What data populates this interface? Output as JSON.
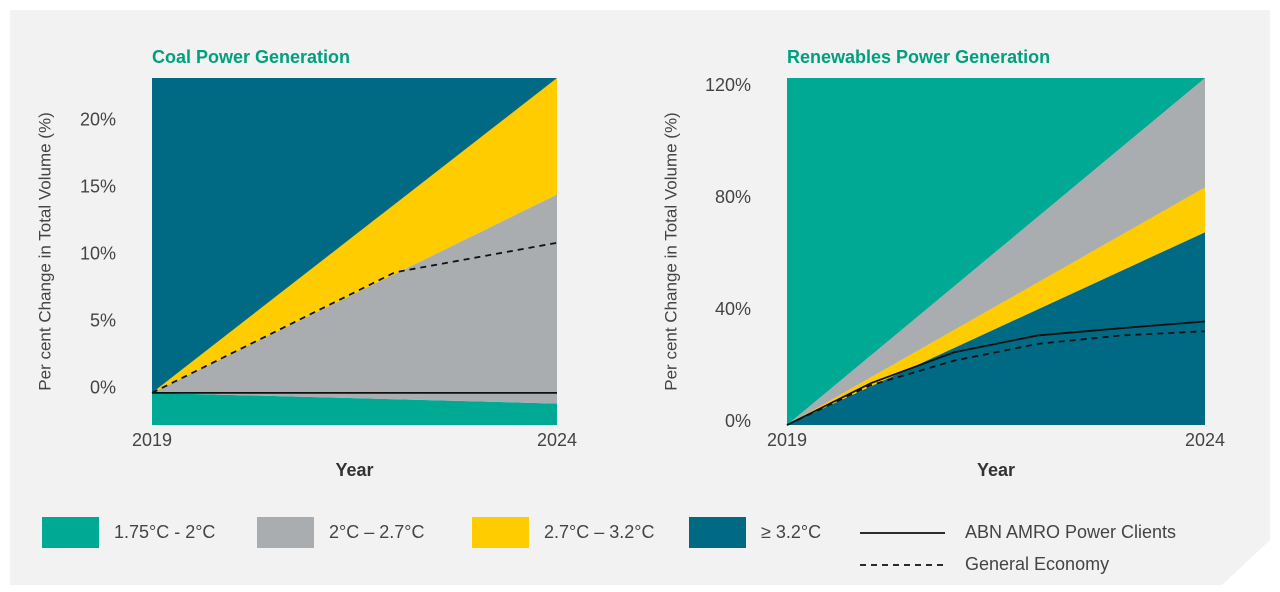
{
  "chart_data": [
    {
      "type": "band",
      "title": "Coal Power Generation",
      "x_label": "Year",
      "y_label": "Per cent Change in Total Volume (%)",
      "x": [
        2019,
        2024
      ],
      "xlim": [
        2019,
        2024
      ],
      "xticks": [
        2019,
        2024
      ],
      "ylim": [
        -2.7,
        23.2
      ],
      "yticks": [
        {
          "value": 0,
          "label": "0%"
        },
        {
          "value": 5,
          "label": "5%"
        },
        {
          "value": 10,
          "label": "10%"
        },
        {
          "value": 15,
          "label": "15%"
        },
        {
          "value": 20,
          "label": "20%"
        }
      ],
      "series": [
        {
          "name": "1.75°C - 2°C",
          "color": "#00a994",
          "low": [
            -2.7,
            -2.7
          ],
          "high": [
            -0.3,
            -1.1
          ]
        },
        {
          "name": "2°C – 2.7°C",
          "color": "#a9adb0",
          "low": [
            -0.3,
            -1.1
          ],
          "high": [
            -0.3,
            14.5
          ]
        },
        {
          "name": "2.7°C – 3.2°C",
          "color": "#ffcc00",
          "low": [
            -0.3,
            14.5
          ],
          "high": [
            -0.3,
            23.2
          ]
        },
        {
          "name": "≥ 3.2°C",
          "color": "#006a84",
          "low": [
            -0.3,
            23.2
          ],
          "high": [
            23.2,
            23.2
          ]
        }
      ],
      "lines": [
        {
          "name": "ABN AMRO Power Clients",
          "style": "solid",
          "color": "#111111",
          "x": [
            2019,
            2024
          ],
          "values": [
            -0.3,
            -0.3
          ]
        },
        {
          "name": "General Economy",
          "style": "dashed",
          "color": "#111111",
          "x": [
            2019,
            2022,
            2024
          ],
          "values": [
            -0.3,
            8.7,
            10.9
          ]
        }
      ]
    },
    {
      "type": "band",
      "title": "Renewables Power Generation",
      "x_label": "Year",
      "y_label": "Per cent Change in Total Volume (%)",
      "x": [
        2019,
        2024
      ],
      "xlim": [
        2019,
        2024
      ],
      "xticks": [
        2019,
        2024
      ],
      "ylim": [
        -1,
        123
      ],
      "yticks": [
        {
          "value": 0,
          "label": "0%"
        },
        {
          "value": 40,
          "label": "40%"
        },
        {
          "value": 80,
          "label": "80%"
        },
        {
          "value": 120,
          "label": "120%"
        }
      ],
      "series": [
        {
          "name": "≥ 3.2°C",
          "color": "#006a84",
          "low": [
            -1,
            -1
          ],
          "high": [
            -1,
            67.9
          ]
        },
        {
          "name": "2.7°C – 3.2°C",
          "color": "#ffcc00",
          "low": [
            -1,
            67.9
          ],
          "high": [
            -1,
            83.9
          ]
        },
        {
          "name": "2°C – 2.7°C",
          "color": "#a9adb0",
          "low": [
            -1,
            83.9
          ],
          "high": [
            -1,
            123
          ]
        },
        {
          "name": "1.75°C - 2°C",
          "color": "#00a994",
          "low": [
            -1,
            123
          ],
          "high": [
            123,
            123
          ]
        }
      ],
      "lines": [
        {
          "name": "ABN AMRO Power Clients",
          "style": "solid",
          "color": "#111111",
          "x": [
            2019,
            2020,
            2021,
            2022,
            2023,
            2024
          ],
          "values": [
            -1,
            13.9,
            25,
            31,
            33.6,
            36
          ]
        },
        {
          "name": "General Economy",
          "style": "dashed",
          "color": "#111111",
          "x": [
            2019,
            2020,
            2021,
            2022,
            2023,
            2024
          ],
          "values": [
            -1,
            13.2,
            22,
            28,
            31,
            32.5
          ]
        }
      ]
    }
  ]
}
